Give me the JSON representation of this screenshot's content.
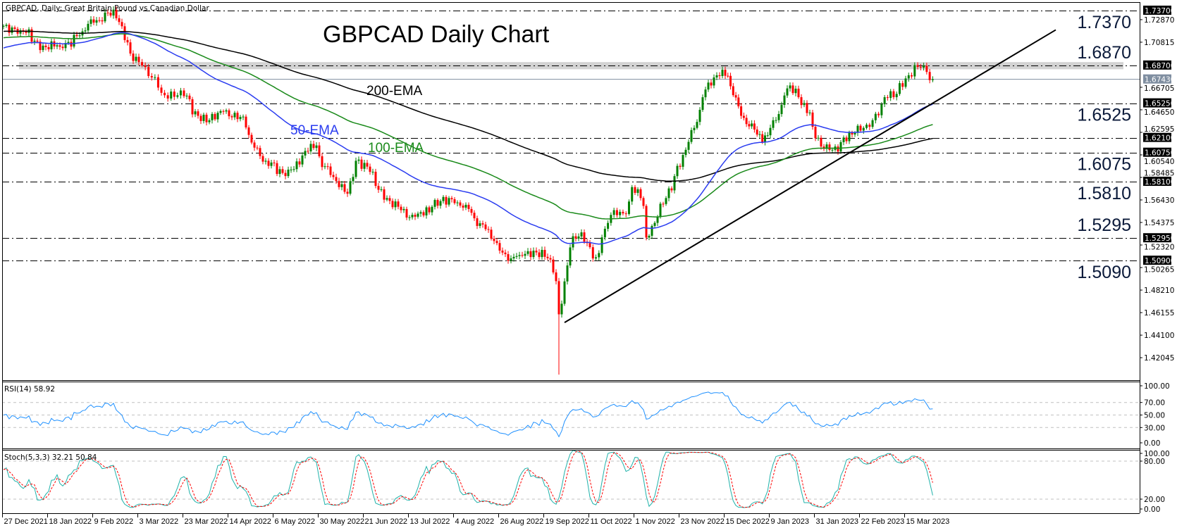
{
  "window": {
    "header": "GBPCAD, Daily:  Great Britain Pound vs Canadian Dollar"
  },
  "chart_data": {
    "type": "candlestick",
    "title": "GBPCAD Daily Chart",
    "symbol": "GBPCAD",
    "timeframe": "Daily",
    "colors": {
      "up": "#008000",
      "down": "#ff0000",
      "ema50": "#2a3cf0",
      "ema100": "#1a8a1a",
      "ema200": "#000000",
      "rsi": "#1e90ff",
      "stoch_main": "#20b2aa",
      "stoch_signal": "#ff0000",
      "band": "#d3d3d3",
      "current_price": "#7f8ea0"
    },
    "ylim": [
      1.395,
      1.745
    ],
    "y_ticks": [
      "1.72870",
      "1.70815",
      "1.66705",
      "1.64650",
      "1.62595",
      "1.60540",
      "1.58485",
      "1.56430",
      "1.54375",
      "1.52320",
      "1.50265",
      "1.48210",
      "1.46155",
      "1.44100",
      "1.42045"
    ],
    "x_ticks": [
      "27 Dec 2021",
      "18 Jan 2022",
      "9 Feb 2022",
      "3 Mar 2022",
      "23 Mar 2022",
      "14 Apr 2022",
      "6 May 2022",
      "30 May 2022",
      "21 Jun 2022",
      "13 Jul 2022",
      "4 Aug 2022",
      "26 Aug 2022",
      "19 Sep 2022",
      "11 Oct 2022",
      "1 Nov 2022",
      "23 Nov 2022",
      "15 Dec 2022",
      "9 Jan 2023",
      "31 Jan 2023",
      "22 Feb 2023",
      "15 Mar 2023"
    ],
    "x_tick_dates": [
      "2021-12-27",
      "2022-01-18",
      "2022-02-09",
      "2022-03-03",
      "2022-03-23",
      "2022-04-14",
      "2022-05-06",
      "2022-05-30",
      "2022-06-21",
      "2022-07-13",
      "2022-08-04",
      "2022-08-26",
      "2022-09-19",
      "2022-10-11",
      "2022-11-01",
      "2022-11-23",
      "2022-12-15",
      "2023-01-09",
      "2023-01-31",
      "2023-02-22",
      "2023-03-15"
    ],
    "price_path": [
      [
        "2021-12-27",
        1.723
      ],
      [
        "2022-01-04",
        1.719
      ],
      [
        "2022-01-14",
        1.705
      ],
      [
        "2022-01-24",
        1.704
      ],
      [
        "2022-02-03",
        1.718
      ],
      [
        "2022-02-09",
        1.726
      ],
      [
        "2022-02-16",
        1.735
      ],
      [
        "2022-02-21",
        1.73
      ],
      [
        "2022-02-25",
        1.708
      ],
      [
        "2022-03-03",
        1.69
      ],
      [
        "2022-03-09",
        1.676
      ],
      [
        "2022-03-14",
        1.662
      ],
      [
        "2022-03-23",
        1.659
      ],
      [
        "2022-03-30",
        1.641
      ],
      [
        "2022-04-05",
        1.637
      ],
      [
        "2022-04-12",
        1.645
      ],
      [
        "2022-04-20",
        1.64
      ],
      [
        "2022-04-27",
        1.612
      ],
      [
        "2022-05-03",
        1.6
      ],
      [
        "2022-05-09",
        1.588
      ],
      [
        "2022-05-16",
        1.592
      ],
      [
        "2022-05-23",
        1.609
      ],
      [
        "2022-05-27",
        1.614
      ],
      [
        "2022-06-01",
        1.595
      ],
      [
        "2022-06-08",
        1.576
      ],
      [
        "2022-06-13",
        1.57
      ],
      [
        "2022-06-16",
        1.6
      ],
      [
        "2022-06-24",
        1.59
      ],
      [
        "2022-07-01",
        1.566
      ],
      [
        "2022-07-08",
        1.555
      ],
      [
        "2022-07-15",
        1.549
      ],
      [
        "2022-07-22",
        1.553
      ],
      [
        "2022-07-29",
        1.567
      ],
      [
        "2022-08-05",
        1.562
      ],
      [
        "2022-08-11",
        1.556
      ],
      [
        "2022-08-17",
        1.543
      ],
      [
        "2022-08-25",
        1.525
      ],
      [
        "2022-09-01",
        1.511
      ],
      [
        "2022-09-06",
        1.514
      ],
      [
        "2022-09-13",
        1.518
      ],
      [
        "2022-09-21",
        1.51
      ],
      [
        "2022-09-26",
        1.46
      ],
      [
        "2022-09-28",
        1.49
      ],
      [
        "2022-09-30",
        1.521
      ],
      [
        "2022-10-05",
        1.531
      ],
      [
        "2022-10-10",
        1.525
      ],
      [
        "2022-10-13",
        1.512
      ],
      [
        "2022-10-18",
        1.538
      ],
      [
        "2022-10-21",
        1.555
      ],
      [
        "2022-10-26",
        1.552
      ],
      [
        "2022-10-31",
        1.576
      ],
      [
        "2022-11-03",
        1.566
      ],
      [
        "2022-11-07",
        1.53
      ],
      [
        "2022-11-11",
        1.549
      ],
      [
        "2022-11-16",
        1.566
      ],
      [
        "2022-11-21",
        1.586
      ],
      [
        "2022-11-25",
        1.61
      ],
      [
        "2022-11-30",
        1.63
      ],
      [
        "2022-12-06",
        1.665
      ],
      [
        "2022-12-09",
        1.676
      ],
      [
        "2022-12-14",
        1.683
      ],
      [
        "2022-12-19",
        1.668
      ],
      [
        "2022-12-23",
        1.641
      ],
      [
        "2022-12-29",
        1.634
      ],
      [
        "2023-01-04",
        1.617
      ],
      [
        "2023-01-09",
        1.63
      ],
      [
        "2023-01-13",
        1.651
      ],
      [
        "2023-01-17",
        1.666
      ],
      [
        "2023-01-23",
        1.658
      ],
      [
        "2023-01-27",
        1.644
      ],
      [
        "2023-02-02",
        1.613
      ],
      [
        "2023-02-08",
        1.61
      ],
      [
        "2023-02-13",
        1.617
      ],
      [
        "2023-02-17",
        1.624
      ],
      [
        "2023-02-23",
        1.63
      ],
      [
        "2023-02-28",
        1.637
      ],
      [
        "2023-03-06",
        1.658
      ],
      [
        "2023-03-10",
        1.661
      ],
      [
        "2023-03-16",
        1.678
      ],
      [
        "2023-03-22",
        1.685
      ],
      [
        "2023-03-24",
        1.681
      ],
      [
        "2023-03-28",
        1.6743
      ]
    ],
    "extreme_low": {
      "date": "2022-09-26",
      "price": 1.405
    },
    "ema_start": {
      "ema50": 1.702,
      "ema100": 1.712,
      "ema200": 1.718
    },
    "ema_labels": {
      "ema50": "50-EMA",
      "ema100": "100-EMA",
      "ema200": "200-EMA"
    },
    "levels": [
      "1.7370",
      "1.6870",
      "1.6525",
      "1.6210",
      "1.6075",
      "1.5810",
      "1.5295",
      "1.5090"
    ],
    "level_annotations": [
      "1.7370",
      "1.6870",
      "1.6525",
      "1.6075",
      "1.5810",
      "1.5295",
      "1.5090"
    ],
    "level_axis_labels": [
      "1.73700",
      "1.68700",
      "1.65250",
      "1.62100",
      "1.60750",
      "1.58100",
      "1.52950",
      "1.50900"
    ],
    "resistance_band": [
      1.6835,
      1.69
    ],
    "current_price": "1.67430",
    "trendline": [
      [
        "2022-09-28",
        1.4525
      ],
      [
        "2023-03-22",
        1.646
      ]
    ],
    "rsi": {
      "label": "RSI(14) 58.92",
      "levels": [
        70,
        50,
        30
      ],
      "ticks": [
        "100.00",
        "70.00",
        "50.00",
        "30.00",
        "0.00"
      ]
    },
    "stoch": {
      "label": "Stoch(5,3,3) 32.21 50.84",
      "levels": [
        80,
        20
      ],
      "ticks": [
        "100.00",
        "80.00",
        "20.00",
        "0.00"
      ]
    }
  }
}
